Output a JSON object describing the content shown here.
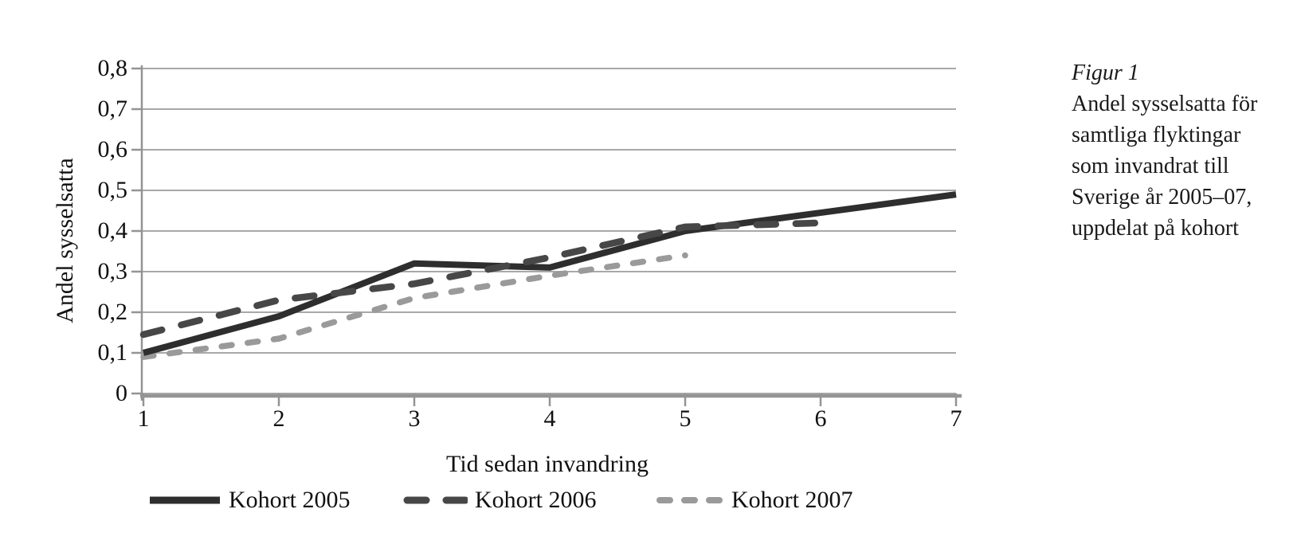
{
  "figure": {
    "caption_title": "Figur 1",
    "caption_lines": [
      "Andel sysselsatta för",
      "samtliga flyktingar",
      "som invandrat till",
      "Sverige år 2005–07,",
      "uppdelat på kohort"
    ]
  },
  "chart_data": {
    "type": "line",
    "title": "",
    "xlabel": "Tid sedan invandring",
    "ylabel": "Andel sysselsatta",
    "xlim": [
      1,
      7
    ],
    "ylim": [
      0,
      0.8
    ],
    "ytick_step": 0.1,
    "ytick_labels": [
      "0",
      "0,1",
      "0,2",
      "0,3",
      "0,4",
      "0,5",
      "0,6",
      "0,7",
      "0,8"
    ],
    "xtick_labels": [
      "1",
      "2",
      "3",
      "4",
      "5",
      "6",
      "7"
    ],
    "grid": true,
    "legend_position": "bottom",
    "series": [
      {
        "name": "Kohort 2005",
        "style": "solid",
        "color": "#2e2e2e",
        "x": [
          1,
          2,
          3,
          4,
          5,
          6,
          7
        ],
        "values": [
          0.1,
          0.19,
          0.32,
          0.31,
          0.4,
          0.445,
          0.49
        ]
      },
      {
        "name": "Kohort 2006",
        "style": "dashed",
        "color": "#474747",
        "x": [
          1,
          2,
          3,
          4,
          5,
          6
        ],
        "values": [
          0.145,
          0.23,
          0.27,
          0.335,
          0.41,
          0.42
        ]
      },
      {
        "name": "Kohort 2007",
        "style": "dashed-short",
        "color": "#9a9a9a",
        "x": [
          1,
          2,
          3,
          4,
          5
        ],
        "values": [
          0.09,
          0.135,
          0.235,
          0.29,
          0.34
        ]
      }
    ],
    "colors": {
      "gridline": "#a8a8a8",
      "axis": "#949494",
      "text": "#111111"
    }
  }
}
